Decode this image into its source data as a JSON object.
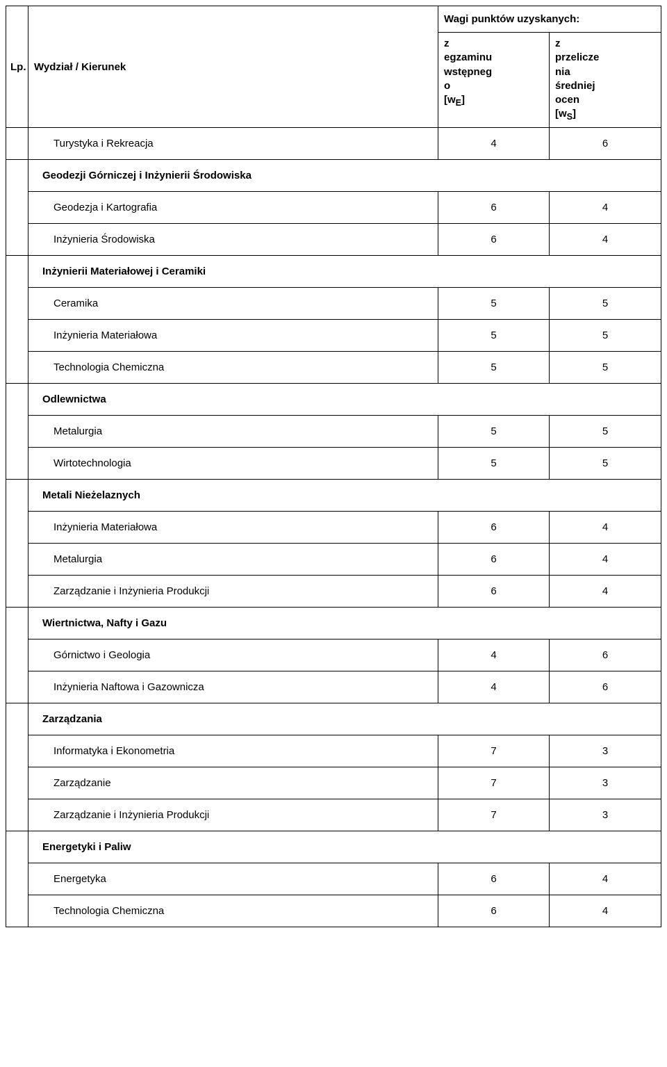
{
  "header": {
    "lp": "Lp.",
    "kierunek": "Wydział / Kierunek",
    "points_title": "Wagi punktów uzyskanych:",
    "sub1_l1": "z",
    "sub1_l2": "egzaminu",
    "sub1_l3": "wstępneg",
    "sub1_l4": "o",
    "sub1_l5": "[w",
    "sub1_l6": "E",
    "sub1_l7": "]",
    "sub2_l1": "z",
    "sub2_l2": "przelicze",
    "sub2_l3": "nia",
    "sub2_l4": "średniej",
    "sub2_l5": "ocen",
    "sub2_l6": "[w",
    "sub2_l7": "S",
    "sub2_l8": "]"
  },
  "rows": {
    "r0": {
      "name": "Turystyka i Rekreacja",
      "v1": "4",
      "v2": "6"
    },
    "d0": "Geodezji Górniczej i Inżynierii Środowiska",
    "r1": {
      "name": "Geodezja i Kartografia",
      "v1": "6",
      "v2": "4"
    },
    "r2": {
      "name": "Inżynieria Środowiska",
      "v1": "6",
      "v2": "4"
    },
    "d1": "Inżynierii Materiałowej i Ceramiki",
    "r3": {
      "name": "Ceramika",
      "v1": "5",
      "v2": "5"
    },
    "r4": {
      "name": "Inżynieria Materiałowa",
      "v1": "5",
      "v2": "5"
    },
    "r5": {
      "name": "Technologia Chemiczna",
      "v1": "5",
      "v2": "5"
    },
    "d2": "Odlewnictwa",
    "r6": {
      "name": "Metalurgia",
      "v1": "5",
      "v2": "5"
    },
    "r7": {
      "name": "Wirtotechnologia",
      "v1": "5",
      "v2": "5"
    },
    "d3": "Metali Nieżelaznych",
    "r8": {
      "name": "Inżynieria Materiałowa",
      "v1": "6",
      "v2": "4"
    },
    "r9": {
      "name": "Metalurgia",
      "v1": "6",
      "v2": "4"
    },
    "r10": {
      "name": "Zarządzanie i Inżynieria Produkcji",
      "v1": "6",
      "v2": "4"
    },
    "d4": "Wiertnictwa, Nafty i Gazu",
    "r11": {
      "name": "Górnictwo i Geologia",
      "v1": "4",
      "v2": "6"
    },
    "r12": {
      "name": "Inżynieria Naftowa i Gazownicza",
      "v1": "4",
      "v2": "6"
    },
    "d5": "Zarządzania",
    "r13": {
      "name": "Informatyka i Ekonometria",
      "v1": "7",
      "v2": "3"
    },
    "r14": {
      "name": "Zarządzanie",
      "v1": "7",
      "v2": "3"
    },
    "r15": {
      "name": "Zarządzanie i Inżynieria Produkcji",
      "v1": "7",
      "v2": "3"
    },
    "d6": "Energetyki i Paliw",
    "r16": {
      "name": "Energetyka",
      "v1": "6",
      "v2": "4"
    },
    "r17": {
      "name": "Technologia Chemiczna",
      "v1": "6",
      "v2": "4"
    }
  },
  "style": {
    "font_family": "Verdana",
    "base_fontsize": 15,
    "border_color": "#000000",
    "background_color": "#ffffff",
    "col_widths": {
      "lp": 32,
      "name": 590,
      "v1": 160
    }
  }
}
